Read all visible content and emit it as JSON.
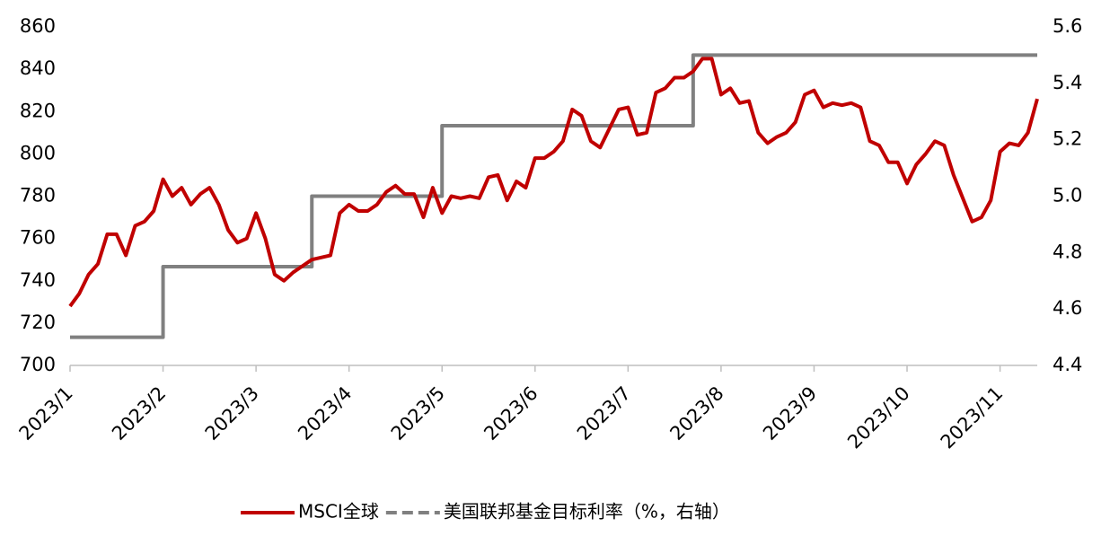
{
  "chart_data": {
    "type": "line",
    "categories": [
      "2023/1",
      null,
      null,
      null,
      null,
      null,
      null,
      null,
      null,
      null,
      "2023/2",
      null,
      null,
      null,
      null,
      null,
      null,
      null,
      null,
      null,
      "2023/3",
      null,
      null,
      null,
      null,
      null,
      null,
      null,
      null,
      null,
      "2023/4",
      null,
      null,
      null,
      null,
      null,
      null,
      null,
      null,
      null,
      "2023/5",
      null,
      null,
      null,
      null,
      null,
      null,
      null,
      null,
      null,
      "2023/6",
      null,
      null,
      null,
      null,
      null,
      null,
      null,
      null,
      null,
      "2023/7",
      null,
      null,
      null,
      null,
      null,
      null,
      null,
      null,
      null,
      "2023/8",
      null,
      null,
      null,
      null,
      null,
      null,
      null,
      null,
      null,
      "2023/9",
      null,
      null,
      null,
      null,
      null,
      null,
      null,
      null,
      null,
      "2023/10",
      null,
      null,
      null,
      null,
      null,
      null,
      null,
      null,
      null,
      "2023/11",
      null,
      null,
      null,
      null
    ],
    "series": [
      {
        "name": "MSCI全球",
        "color": "#c00000",
        "axis": "y",
        "values": [
          728,
          734,
          743,
          748,
          762,
          762,
          752,
          766,
          768,
          773,
          788,
          780,
          784,
          776,
          781,
          784,
          776,
          764,
          758,
          760,
          772,
          760,
          743,
          740,
          744,
          747,
          750,
          751,
          752,
          772,
          776,
          773,
          773,
          776,
          782,
          785,
          781,
          781,
          770,
          784,
          772,
          780,
          779,
          780,
          779,
          789,
          790,
          778,
          787,
          784,
          798,
          798,
          801,
          806,
          821,
          818,
          806,
          803,
          812,
          821,
          822,
          809,
          810,
          829,
          831,
          836,
          836,
          839,
          845,
          845,
          828,
          831,
          824,
          825,
          810,
          805,
          808,
          810,
          815,
          828,
          830,
          822,
          824,
          823,
          824,
          822,
          806,
          804,
          796,
          796,
          786,
          795,
          800,
          806,
          804,
          790,
          779,
          768,
          770,
          778,
          801,
          805,
          804,
          810,
          826
        ]
      },
      {
        "name": "美国联邦基金目标利率（%，右轴）",
        "color": "#808080",
        "axis": "y2",
        "dashed": true,
        "step": true,
        "values": [
          4.5,
          4.5,
          4.5,
          4.5,
          4.5,
          4.5,
          4.5,
          4.5,
          4.5,
          4.5,
          4.75,
          4.75,
          4.75,
          4.75,
          4.75,
          4.75,
          4.75,
          4.75,
          4.75,
          4.75,
          4.75,
          4.75,
          4.75,
          4.75,
          4.75,
          4.75,
          5.0,
          5.0,
          5.0,
          5.0,
          5.0,
          5.0,
          5.0,
          5.0,
          5.0,
          5.0,
          5.0,
          5.0,
          5.0,
          5.0,
          5.25,
          5.25,
          5.25,
          5.25,
          5.25,
          5.25,
          5.25,
          5.25,
          5.25,
          5.25,
          5.25,
          5.25,
          5.25,
          5.25,
          5.25,
          5.25,
          5.25,
          5.25,
          5.25,
          5.25,
          5.25,
          5.25,
          5.25,
          5.25,
          5.25,
          5.25,
          5.25,
          5.5,
          5.5,
          5.5,
          5.5,
          5.5,
          5.5,
          5.5,
          5.5,
          5.5,
          5.5,
          5.5,
          5.5,
          5.5,
          5.5,
          5.5,
          5.5,
          5.5,
          5.5,
          5.5,
          5.5,
          5.5,
          5.5,
          5.5,
          5.5,
          5.5,
          5.5,
          5.5,
          5.5,
          5.5,
          5.5,
          5.5,
          5.5,
          5.5,
          5.5,
          5.5,
          5.5,
          5.5,
          5.5
        ]
      }
    ],
    "ylim": [
      700,
      860
    ],
    "yticks": [
      700,
      720,
      740,
      760,
      780,
      800,
      820,
      840,
      860
    ],
    "y2lim": [
      4.4,
      5.6
    ],
    "y2ticks": [
      4.4,
      4.6,
      4.8,
      5.0,
      5.2,
      5.4,
      5.6
    ],
    "legend": "bottom"
  }
}
